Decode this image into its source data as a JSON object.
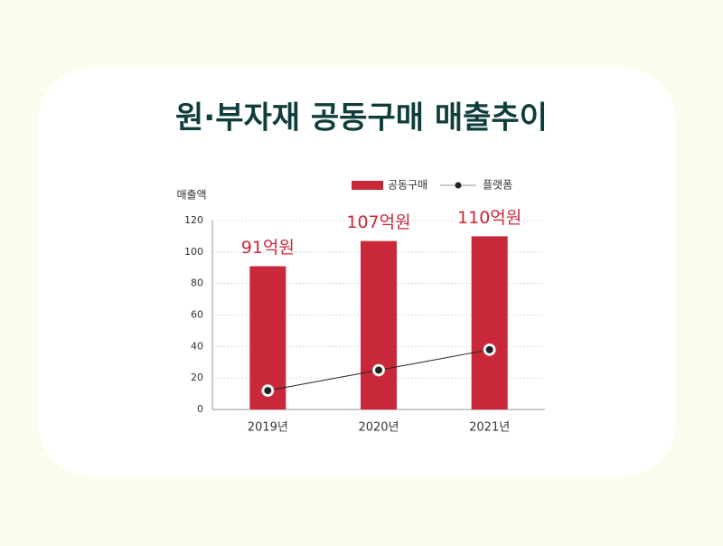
{
  "chart_data": {
    "type": "bar",
    "title": "원·부자재 공동구매 매출추이",
    "y_axis_label": "매출액",
    "categories": [
      "2019년",
      "2020년",
      "2021년"
    ],
    "series": [
      {
        "name": "공동구매",
        "type": "bar",
        "color": "#c8283a",
        "values": [
          91,
          107,
          110
        ],
        "value_labels": [
          "91억원",
          "107억원",
          "110억원"
        ]
      },
      {
        "name": "플랫폼",
        "type": "line",
        "color": "#222222",
        "values": [
          12,
          25,
          38
        ]
      }
    ],
    "ylim": [
      0,
      120
    ],
    "yticks": [
      0,
      20,
      40,
      60,
      80,
      100,
      120
    ],
    "grid": true,
    "legend": "top-right"
  }
}
